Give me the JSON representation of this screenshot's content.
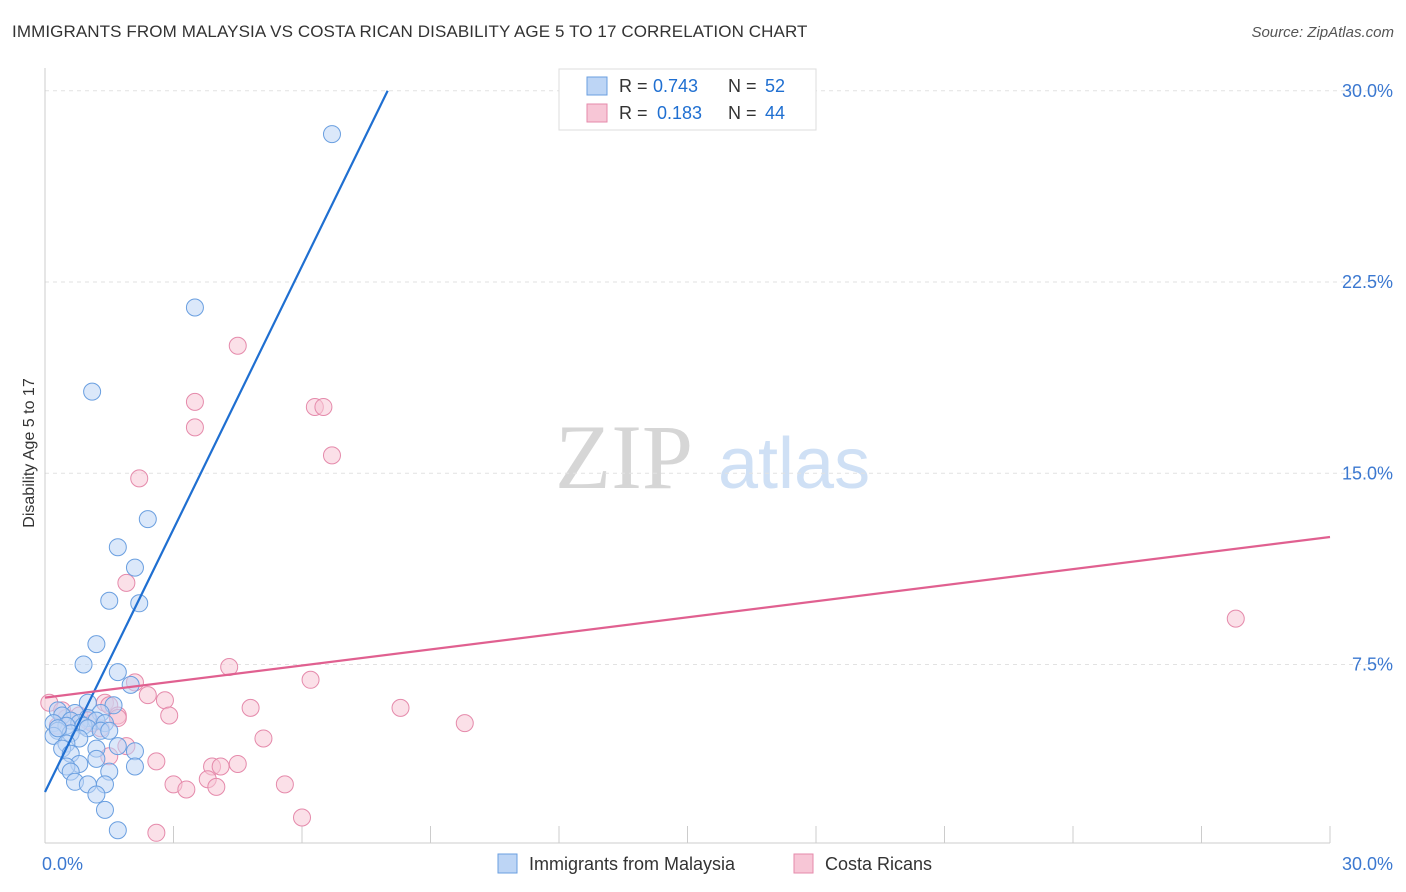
{
  "title": "IMMIGRANTS FROM MALAYSIA VS COSTA RICAN DISABILITY AGE 5 TO 17 CORRELATION CHART",
  "source": "Source: ZipAtlas.com",
  "watermark": {
    "zip": "ZIP",
    "atlas": "atlas"
  },
  "colors": {
    "blue": "#1f6fd1",
    "blue_fill": "#bdd5f5",
    "pink": "#e06090",
    "pink_fill": "#f7c6d6",
    "grid": "#dddddd",
    "axis_text": "#3b78d0"
  },
  "stats_legend": [
    {
      "series": "Immigrants from Malaysia",
      "r_label": "R =",
      "r_value": "0.743",
      "n_label": "N =",
      "n_value": "52"
    },
    {
      "series": "Costa Ricans",
      "r_label": "R =",
      "r_value": "0.183",
      "n_label": "N =",
      "n_value": "44"
    }
  ],
  "chart_data": {
    "type": "scatter",
    "title": "IMMIGRANTS FROM MALAYSIA VS COSTA RICAN DISABILITY AGE 5 TO 17 CORRELATION CHART",
    "xlabel": "",
    "ylabel": "Disability Age 5 to 17",
    "xlim": [
      0,
      30
    ],
    "ylim": [
      0.5,
      30.5
    ],
    "x_tick_labels": [
      "0.0%",
      "30.0%"
    ],
    "y_ticks": [
      7.5,
      15.0,
      22.5,
      30.0
    ],
    "y_tick_labels": [
      "7.5%",
      "15.0%",
      "22.5%",
      "30.0%"
    ],
    "grid": true,
    "legend_position": "bottom-center",
    "series": [
      {
        "name": "Immigrants from Malaysia",
        "color": "#1f6fd1",
        "fill": "#bdd5f5",
        "trend": {
          "x": [
            0.0,
            8.0
          ],
          "y": 2.5,
          "y_end": 30.0
        },
        "points": [
          [
            6.7,
            28.3
          ],
          [
            3.5,
            21.5
          ],
          [
            1.1,
            18.2
          ],
          [
            2.4,
            13.2
          ],
          [
            1.7,
            12.1
          ],
          [
            2.1,
            11.3
          ],
          [
            1.5,
            10.0
          ],
          [
            2.2,
            9.9
          ],
          [
            1.2,
            8.3
          ],
          [
            0.9,
            7.5
          ],
          [
            1.7,
            7.2
          ],
          [
            2.0,
            6.7
          ],
          [
            1.0,
            6.0
          ],
          [
            1.6,
            5.9
          ],
          [
            0.3,
            5.7
          ],
          [
            1.3,
            5.6
          ],
          [
            0.7,
            5.6
          ],
          [
            0.4,
            5.5
          ],
          [
            1.0,
            5.4
          ],
          [
            0.6,
            5.3
          ],
          [
            1.2,
            5.3
          ],
          [
            0.2,
            5.2
          ],
          [
            0.8,
            5.2
          ],
          [
            1.4,
            5.2
          ],
          [
            0.5,
            5.1
          ],
          [
            0.9,
            5.1
          ],
          [
            1.0,
            5.0
          ],
          [
            1.3,
            4.9
          ],
          [
            0.3,
            4.9
          ],
          [
            0.6,
            4.8
          ],
          [
            1.5,
            4.9
          ],
          [
            0.2,
            4.7
          ],
          [
            0.8,
            4.6
          ],
          [
            0.5,
            4.4
          ],
          [
            0.4,
            4.2
          ],
          [
            1.7,
            4.3
          ],
          [
            1.2,
            4.2
          ],
          [
            2.1,
            4.1
          ],
          [
            0.6,
            4.0
          ],
          [
            1.2,
            3.8
          ],
          [
            0.8,
            3.6
          ],
          [
            0.5,
            3.5
          ],
          [
            2.1,
            3.5
          ],
          [
            1.5,
            3.3
          ],
          [
            0.6,
            3.3
          ],
          [
            0.7,
            2.9
          ],
          [
            1.4,
            2.8
          ],
          [
            1.0,
            2.8
          ],
          [
            1.2,
            2.4
          ],
          [
            1.4,
            1.8
          ],
          [
            1.7,
            1.0
          ],
          [
            0.3,
            5.0
          ]
        ]
      },
      {
        "name": "Costa Ricans",
        "color": "#e06090",
        "fill": "#f7c6d6",
        "trend": {
          "x": [
            0.0,
            30.0
          ],
          "y": 6.2,
          "y_end": 12.5
        },
        "points": [
          [
            4.5,
            20.0
          ],
          [
            3.5,
            17.8
          ],
          [
            6.3,
            17.6
          ],
          [
            6.5,
            17.6
          ],
          [
            3.5,
            16.8
          ],
          [
            6.7,
            15.7
          ],
          [
            2.2,
            14.8
          ],
          [
            1.9,
            10.7
          ],
          [
            27.8,
            9.3
          ],
          [
            4.3,
            7.4
          ],
          [
            6.2,
            6.9
          ],
          [
            2.1,
            6.8
          ],
          [
            2.4,
            6.3
          ],
          [
            2.8,
            6.1
          ],
          [
            0.1,
            6.0
          ],
          [
            1.4,
            6.0
          ],
          [
            1.5,
            5.9
          ],
          [
            4.8,
            5.8
          ],
          [
            8.3,
            5.8
          ],
          [
            0.4,
            5.7
          ],
          [
            2.9,
            5.5
          ],
          [
            1.7,
            5.5
          ],
          [
            0.8,
            5.5
          ],
          [
            0.5,
            5.4
          ],
          [
            1.7,
            5.4
          ],
          [
            1.0,
            5.3
          ],
          [
            9.8,
            5.2
          ],
          [
            1.3,
            5.0
          ],
          [
            5.1,
            4.6
          ],
          [
            1.9,
            4.3
          ],
          [
            1.5,
            3.9
          ],
          [
            2.6,
            3.7
          ],
          [
            4.5,
            3.6
          ],
          [
            3.9,
            3.5
          ],
          [
            4.1,
            3.5
          ],
          [
            3.8,
            3.0
          ],
          [
            3.0,
            2.8
          ],
          [
            5.6,
            2.8
          ],
          [
            3.3,
            2.6
          ],
          [
            4.0,
            2.7
          ],
          [
            6.0,
            1.5
          ],
          [
            2.6,
            0.9
          ],
          [
            0.3,
            5.1
          ],
          [
            1.1,
            5.2
          ]
        ]
      }
    ]
  },
  "bottom_legend": [
    {
      "label": "Immigrants from Malaysia"
    },
    {
      "label": "Costa Ricans"
    }
  ]
}
